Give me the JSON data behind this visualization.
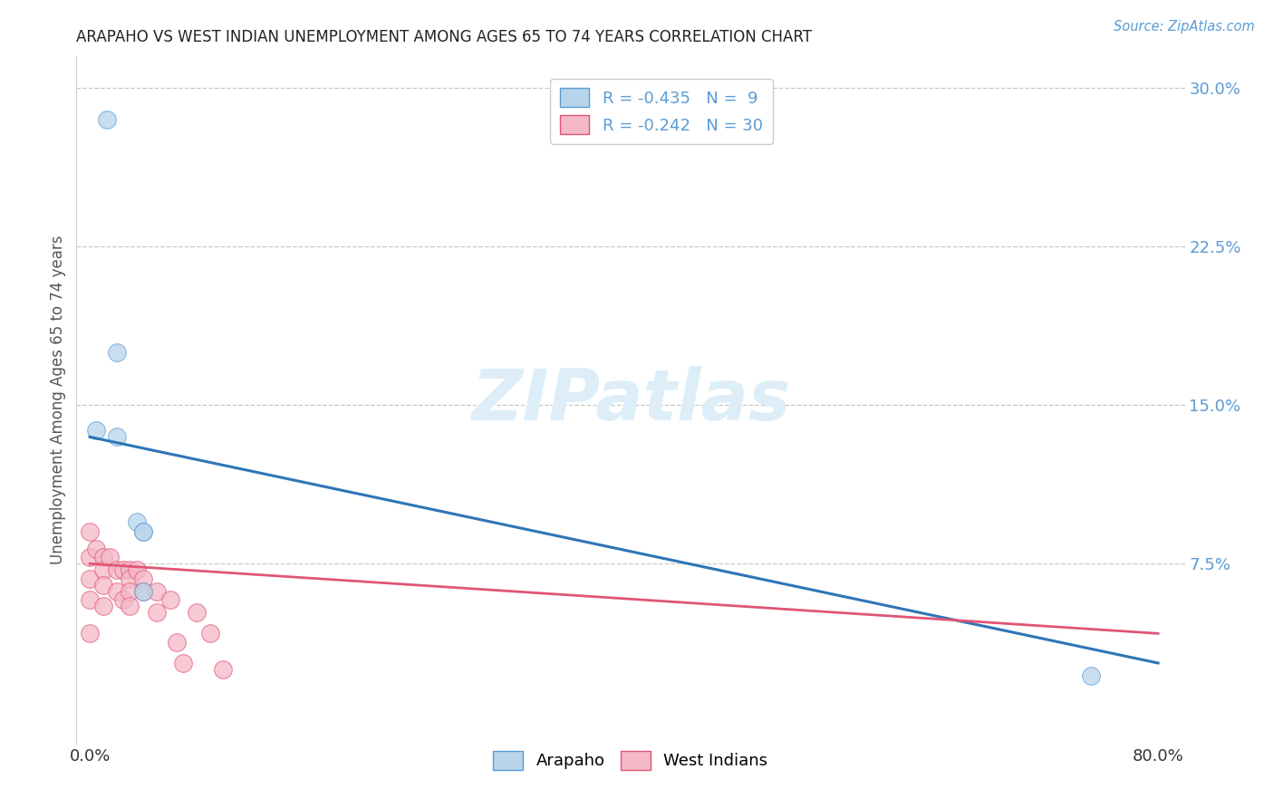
{
  "title": "ARAPAHO VS WEST INDIAN UNEMPLOYMENT AMONG AGES 65 TO 74 YEARS CORRELATION CHART",
  "source": "Source: ZipAtlas.com",
  "ylabel": "Unemployment Among Ages 65 to 74 years",
  "xlim": [
    -0.01,
    0.82
  ],
  "ylim": [
    -0.01,
    0.315
  ],
  "xtick_vals": [
    0.0,
    0.8
  ],
  "xticklabels": [
    "0.0%",
    "80.0%"
  ],
  "ytick_vals": [
    0.0,
    0.075,
    0.15,
    0.225,
    0.3
  ],
  "yticklabels": [
    "",
    "7.5%",
    "15.0%",
    "22.5%",
    "30.0%"
  ],
  "grid_color": "#c8c8c8",
  "background_color": "#ffffff",
  "label_color": "#5b9bd5",
  "arapaho": {
    "R": -0.435,
    "N": 9,
    "scatter_color": "#b8d4ea",
    "scatter_edge": "#5b9bd5",
    "line_color": "#2e75b6",
    "points_x": [
      0.013,
      0.02,
      0.02,
      0.035,
      0.04,
      0.04,
      0.04,
      0.75,
      0.005
    ],
    "points_y": [
      0.285,
      0.175,
      0.135,
      0.095,
      0.09,
      0.09,
      0.062,
      0.022,
      0.138
    ],
    "trend_x0": 0.0,
    "trend_x1": 0.8,
    "trend_y0": 0.135,
    "trend_y1": 0.028
  },
  "west_indians": {
    "R": -0.242,
    "N": 30,
    "scatter_color": "#f4b8c8",
    "scatter_edge": "#e05575",
    "line_color": "#e05575",
    "points_x": [
      0.0,
      0.0,
      0.0,
      0.0,
      0.0,
      0.005,
      0.01,
      0.01,
      0.01,
      0.01,
      0.015,
      0.02,
      0.02,
      0.025,
      0.025,
      0.03,
      0.03,
      0.03,
      0.03,
      0.035,
      0.04,
      0.04,
      0.05,
      0.05,
      0.06,
      0.065,
      0.07,
      0.08,
      0.09,
      0.1
    ],
    "points_y": [
      0.09,
      0.078,
      0.068,
      0.058,
      0.042,
      0.082,
      0.078,
      0.072,
      0.065,
      0.055,
      0.078,
      0.072,
      0.062,
      0.072,
      0.058,
      0.072,
      0.068,
      0.062,
      0.055,
      0.072,
      0.068,
      0.062,
      0.062,
      0.052,
      0.058,
      0.038,
      0.028,
      0.052,
      0.042,
      0.025
    ],
    "trend_x0": 0.0,
    "trend_x1": 0.8,
    "trend_y0": 0.075,
    "trend_y1": 0.042
  },
  "watermark_text": "ZIPatlas",
  "watermark_color": "#ddeef8",
  "bottom_legend_labels": [
    "Arapaho",
    "West Indians"
  ]
}
